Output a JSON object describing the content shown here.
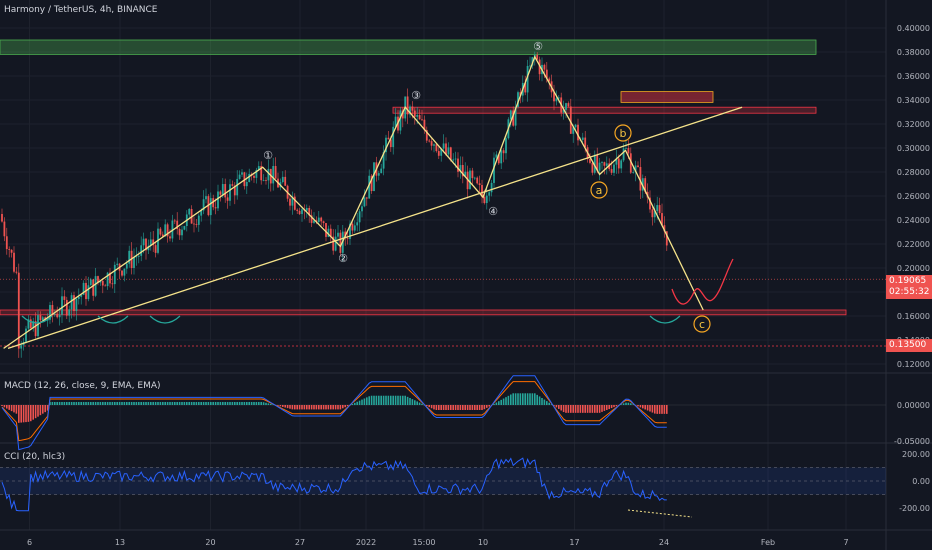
{
  "header": {
    "symbol_title": "Harmony / TetherUS, 4h, BINANCE"
  },
  "price_panel": {
    "last_price": "0.19065",
    "countdown": "02:55:32",
    "support_price": "0.13500",
    "y_ticks": [
      "0.40000",
      "0.38000",
      "0.36000",
      "0.34000",
      "0.32000",
      "0.30000",
      "0.28000",
      "0.26000",
      "0.24000",
      "0.22000",
      "0.20000",
      "0.18000",
      "0.16000",
      "0.14000",
      "0.12000"
    ],
    "ylim": [
      0.11,
      0.415
    ]
  },
  "macd_panel": {
    "title": "MACD (12, 26, close, 9, EMA, EMA)",
    "y_ticks": [
      "0.00000",
      "-0.05000"
    ]
  },
  "cci_panel": {
    "title": "CCI (20, hlc3)",
    "y_ticks": [
      "200.00",
      "0.00",
      "-200.00"
    ]
  },
  "x_axis": {
    "labels": [
      "6",
      "13",
      "20",
      "27",
      "2022",
      "15:00",
      "10",
      "17",
      "24",
      "Feb",
      "7"
    ]
  },
  "wave_labels": {
    "w1": "①",
    "w2": "②",
    "w3": "③",
    "w4": "④",
    "w5": "⑤",
    "a": "a",
    "b": "b",
    "c": "c"
  },
  "colors": {
    "background": "#131722",
    "up_candle": "#26a69a",
    "down_candle": "#ef5350",
    "wave_line": "#f5e38a",
    "trendline": "#f5e38a",
    "support_zone": "#f23645",
    "resistance_zone_top": "#4caf50",
    "macd_line": "#2962ff",
    "signal_line": "#ff6d00",
    "cci_line": "#2962ff",
    "projection": "#f23645"
  },
  "chart_data": {
    "type": "candlestick",
    "symbol": "Harmony / TetherUS",
    "timeframe": "4h",
    "exchange": "BINANCE",
    "ylim": [
      0.11,
      0.415
    ],
    "last_price": 0.19065,
    "wave_points": [
      {
        "label": "start",
        "date": "Dec 4",
        "price": 0.133
      },
      {
        "label": "1",
        "date": "Dec 24",
        "price": 0.284
      },
      {
        "label": "2",
        "date": "Dec 30",
        "price": 0.218
      },
      {
        "label": "3",
        "date": "Jan 4",
        "price": 0.334
      },
      {
        "label": "4",
        "date": "Jan 10",
        "price": 0.259
      },
      {
        "label": "5",
        "date": "Jan 14",
        "price": 0.376
      },
      {
        "label": "a",
        "date": "Jan 19",
        "price": 0.278
      },
      {
        "label": "b",
        "date": "Jan 21",
        "price": 0.298
      },
      {
        "label": "c",
        "date": "Jan 27",
        "price": 0.165
      }
    ],
    "trendline": [
      {
        "date": "Dec 4",
        "price": 0.133
      },
      {
        "date": "Jan 30",
        "price": 0.334
      }
    ],
    "zones": [
      {
        "name": "top band",
        "from": 0.378,
        "to": 0.39
      },
      {
        "name": "resistance",
        "from": 0.329,
        "to": 0.334
      },
      {
        "name": "resistance box",
        "from": 0.338,
        "to": 0.347
      },
      {
        "name": "support",
        "from": 0.161,
        "to": 0.165
      }
    ],
    "support_level": 0.135,
    "macd_range": [
      -0.06,
      0.03
    ],
    "cci_levels": [
      100,
      0,
      -100
    ]
  }
}
